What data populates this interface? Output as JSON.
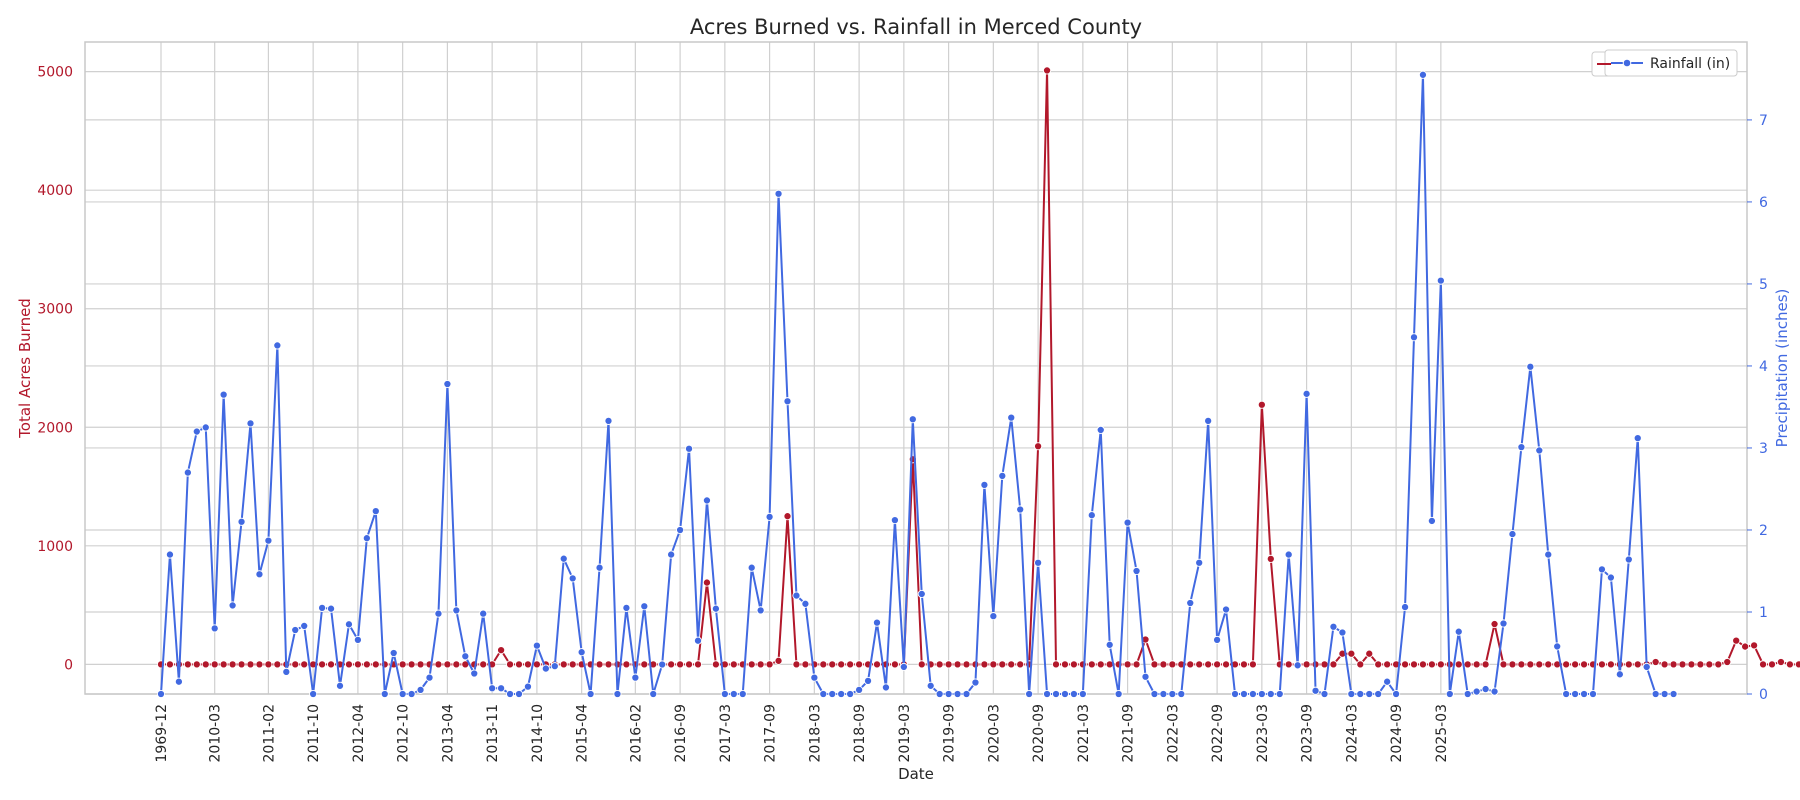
{
  "chart_data": {
    "type": "line",
    "title": "Acres Burned vs. Rainfall in Merced County",
    "xlabel": "Date",
    "ylabel_left": "Total Acres Burned",
    "ylabel_right": "Precipitation (inches)",
    "y_left_lim": [
      -250,
      5250
    ],
    "y_right_lim": [
      0,
      7.95
    ],
    "y_left_ticks": [
      0,
      1000,
      2000,
      3000,
      4000,
      5000
    ],
    "y_right_ticks": [
      0,
      1,
      2,
      3,
      4,
      5,
      6,
      7
    ],
    "x_tick_labels": [
      "1969-12",
      "2010-03",
      "2011-02",
      "2011-10",
      "2012-04",
      "2012-10",
      "2013-04",
      "2013-11",
      "2014-10",
      "2015-04",
      "2016-02",
      "2016-09",
      "2017-03",
      "2017-09",
      "2018-03",
      "2018-09",
      "2019-03",
      "2019-09",
      "2020-03",
      "2020-09",
      "2021-03",
      "2021-09",
      "2022-03",
      "2022-09",
      "2023-03",
      "2023-09",
      "2024-03",
      "2024-09",
      "2025-03"
    ],
    "x_tick_positions": [
      0,
      6,
      12,
      17,
      22,
      27,
      32,
      37,
      42,
      47,
      53,
      58,
      63,
      68,
      73,
      78,
      83,
      88,
      93,
      98,
      103,
      108,
      113,
      118,
      123,
      128,
      133,
      138,
      143
    ],
    "grid": true,
    "legend_position": "top-right",
    "colors": {
      "acres": "#b2182b",
      "rain": "#4169e1",
      "grid": "#d0d0d0",
      "frame": "#c8c8c8"
    },
    "series": [
      {
        "name": "Acres Burned",
        "axis": "left",
        "color": "#b2182b",
        "values": [
          0,
          0,
          0,
          0,
          0,
          0,
          0,
          0,
          0,
          0,
          0,
          0,
          0,
          0,
          0,
          0,
          0,
          0,
          0,
          0,
          0,
          0,
          0,
          0,
          0,
          0,
          0,
          0,
          0,
          0,
          0,
          0,
          0,
          0,
          0,
          0,
          0,
          0,
          120,
          0,
          0,
          0,
          0,
          0,
          0,
          0,
          0,
          0,
          0,
          0,
          0,
          0,
          0,
          0,
          0,
          0,
          0,
          0,
          0,
          0,
          0,
          690,
          0,
          0,
          0,
          0,
          0,
          0,
          0,
          30,
          1250,
          0,
          0,
          0,
          0,
          0,
          0,
          0,
          0,
          0,
          0,
          0,
          0,
          0,
          1730,
          0,
          0,
          0,
          0,
          0,
          0,
          0,
          0,
          0,
          0,
          0,
          0,
          0,
          1840,
          5010,
          0,
          0,
          0,
          0,
          0,
          0,
          0,
          0,
          0,
          0,
          210,
          0,
          0,
          0,
          0,
          0,
          0,
          0,
          0,
          0,
          0,
          0,
          0,
          2190,
          890,
          0,
          0,
          0,
          0,
          0,
          0,
          0,
          90,
          90,
          0,
          90,
          0,
          0,
          0,
          0,
          0,
          0,
          0,
          0,
          0,
          0,
          0,
          0,
          0,
          340,
          0,
          0,
          0,
          0,
          0,
          0,
          0,
          0,
          0,
          0,
          0,
          0,
          0,
          0,
          0,
          0,
          0,
          20,
          0,
          0,
          0,
          0,
          0,
          0,
          0,
          20,
          200,
          150,
          160,
          0,
          0,
          20,
          0,
          0,
          0,
          0,
          1240,
          130,
          30
        ]
      },
      {
        "name": "Rainfall (in)",
        "axis": "right",
        "color": "#4169e1",
        "values": [
          0,
          1.7,
          0.15,
          2.7,
          3.2,
          3.25,
          0.8,
          3.65,
          1.08,
          2.1,
          3.3,
          1.46,
          1.87,
          4.25,
          0.27,
          0.78,
          0.83,
          0,
          1.05,
          1.04,
          0.1,
          0.85,
          0.66,
          1.9,
          2.23,
          0,
          0.5,
          0,
          0,
          0.05,
          0.2,
          0.98,
          3.78,
          1.02,
          0.46,
          0.25,
          0.98,
          0.07,
          0.07,
          0,
          0,
          0.09,
          0.59,
          0.31,
          0.34,
          1.65,
          1.41,
          0.51,
          0,
          1.54,
          3.33,
          0,
          1.05,
          0.2,
          1.07,
          0,
          0.36,
          1.7,
          2.0,
          2.99,
          0.65,
          2.36,
          1.04,
          0,
          0,
          0,
          1.54,
          1.02,
          2.16,
          6.1,
          3.57,
          1.2,
          1.1,
          0.2,
          0,
          0,
          0,
          0,
          0.05,
          0.16,
          0.87,
          0.08,
          2.12,
          0.33,
          3.35,
          1.22,
          0.1,
          0,
          0,
          0,
          0,
          0.14,
          2.55,
          0.95,
          2.66,
          3.37,
          2.25,
          0,
          1.6,
          0,
          0,
          0,
          0,
          0,
          2.18,
          3.22,
          0.6,
          0,
          2.09,
          1.5,
          0.21,
          0,
          0,
          0,
          0,
          1.11,
          1.6,
          3.33,
          0.66,
          1.03,
          0,
          0,
          0,
          0,
          0,
          0,
          1.7,
          0.35,
          3.66,
          0.04,
          0,
          0.82,
          0.75,
          0,
          0,
          0,
          0,
          0.15,
          0,
          1.06,
          4.35,
          7.55,
          2.11,
          5.04,
          0,
          0.76,
          0,
          0.03,
          0.06,
          0.03,
          0.86,
          1.95,
          3.01,
          3.99,
          2.97,
          1.7,
          0.58,
          0,
          0,
          0,
          0,
          1.52,
          1.42,
          0.24,
          1.64,
          3.12,
          0.33,
          0,
          0,
          0
        ]
      }
    ]
  }
}
